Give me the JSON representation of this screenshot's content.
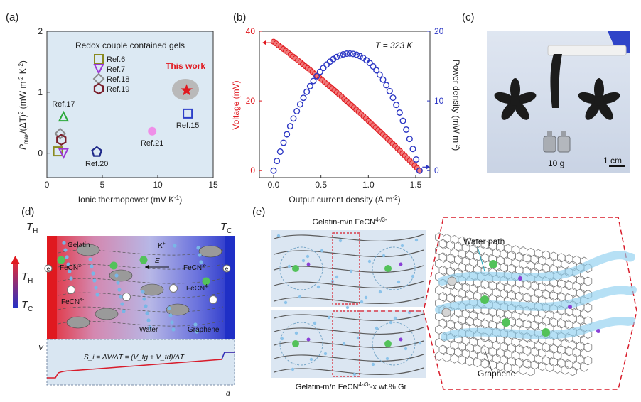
{
  "panel_labels": {
    "a": "(a)",
    "b": "(b)",
    "c": "(c)",
    "d": "(d)",
    "e": "(e)"
  },
  "panel_a": {
    "chart_data": {
      "type": "scatter",
      "title": "Redox couple contained gels",
      "xlabel": "Ionic thermopower (mV K",
      "xlabel_sup": "-1",
      "xlabel_end": ")",
      "ylabel_parts": [
        "P",
        "max",
        "/(ΔT)",
        "2",
        " (mW m",
        "-2",
        " K",
        "-2",
        ")"
      ],
      "xlim": [
        0,
        15
      ],
      "ylim": [
        -0.4,
        2
      ],
      "x_ticks": [
        0,
        5,
        10,
        15
      ],
      "y_ticks": [
        0,
        1,
        2
      ],
      "points": [
        {
          "label": "Ref.6",
          "x": 1.0,
          "y": 0.03,
          "marker": "square",
          "color": "#8a8a1f",
          "legend": true
        },
        {
          "label": "Ref.7",
          "x": 1.5,
          "y": 0.0,
          "marker": "triangle-down",
          "color": "#9b37d6",
          "legend": true
        },
        {
          "label": "Ref.18",
          "x": 1.2,
          "y": 0.32,
          "marker": "diamond",
          "color": "#8c8c8c",
          "legend": true
        },
        {
          "label": "Ref.19",
          "x": 1.3,
          "y": 0.22,
          "marker": "hexagon",
          "color": "#7a1f2b",
          "legend": true
        },
        {
          "label": "Ref.17",
          "x": 1.5,
          "y": 0.6,
          "marker": "triangle-up",
          "color": "#2aa838",
          "legend": false
        },
        {
          "label": "Ref.20",
          "x": 4.5,
          "y": 0.02,
          "marker": "pentagon",
          "color": "#1f2a8a",
          "legend": false
        },
        {
          "label": "Ref.21",
          "x": 9.5,
          "y": 0.36,
          "marker": "circle",
          "color": "#ef8fe8",
          "legend": false
        },
        {
          "label": "Ref.15",
          "x": 12.7,
          "y": 0.65,
          "marker": "square",
          "color": "#2c3fc9",
          "legend": false
        },
        {
          "label": "This work",
          "x": 12.6,
          "y": 1.03,
          "marker": "star",
          "color": "#e0191f",
          "legend": false
        }
      ],
      "highlight_label": "This work"
    }
  },
  "panel_b": {
    "chart_data": {
      "type": "scatter",
      "xlabel": "Output current density (A m",
      "xlabel_sup": "-2",
      "xlabel_end": ")",
      "ylabel_left": "Voltage (mV)",
      "ylabel_right": "Power density (mW m",
      "ylabel_right_sup": "-2",
      "ylabel_right_end": ")",
      "xlim": [
        -0.15,
        1.65
      ],
      "ylim_left": [
        -2,
        40
      ],
      "ylim_right": [
        -1,
        20
      ],
      "x_ticks": [
        0.0,
        0.5,
        1.0,
        1.5
      ],
      "x_tick_labels": [
        "0.0",
        "0.5",
        "1.0",
        "1.5"
      ],
      "y_left_ticks": [
        0,
        20,
        40
      ],
      "y_right_ticks": [
        0,
        10,
        20
      ],
      "annotation": "T = 323 K",
      "voltage_series": {
        "name": "Voltage",
        "color": "#e0191f",
        "Voc": 37,
        "Isc": 1.54,
        "curve": 0.08
      },
      "power_series": {
        "name": "Power density",
        "color": "#2b36c4",
        "peak_x": 0.82,
        "peak_y": 16.8
      }
    }
  },
  "panel_c": {
    "scale_label": "1 cm",
    "weight_label": "10 g"
  },
  "panel_d": {
    "TH": "T",
    "TH_sub": "H",
    "TC": "T",
    "TC_sub": "C",
    "legend_TH": "T",
    "legend_TH_sub": "H",
    "legend_TC": "T",
    "legend_TC_sub": "C",
    "gelatin": "Gelatin",
    "kplus": "K",
    "kplus_sup": "+",
    "efield": "E",
    "fecn3_left": "FeCN",
    "fecn3_left_sup": "3-",
    "fecn3_right": "FeCN",
    "fecn3_right_sup": "3-",
    "fecn4_left": "FeCN",
    "fecn4_left_sup": "4-",
    "fecn4_right": "FeCN",
    "fecn4_right_sup": "4-",
    "water": "Water",
    "graphene": "Graphene",
    "electron_left": "e",
    "electron_right": "e",
    "v_axis": "V",
    "d_axis": "d",
    "equation": "S_i = ΔV/ΔT = (V_tg + V_td)/ΔT"
  },
  "panel_e": {
    "top_label": "Gelatin-m/n FeCN",
    "top_label_sup": "4-/3-",
    "bottom_label": "Gelatin-m/n FeCN",
    "bottom_label_sup": "4-/3-",
    "bottom_label_end": "-x wt.% Gr",
    "water_path": "Water path",
    "graphene": "Graphene"
  }
}
